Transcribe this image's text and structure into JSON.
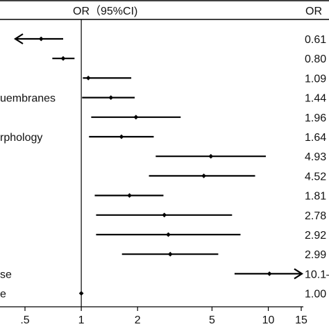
{
  "chart_data": {
    "type": "forest",
    "header": {
      "center": "OR（95%CI)",
      "right": "OR"
    },
    "x_scale": "log",
    "xlim": [
      0.4,
      15
    ],
    "x_ticks": [
      {
        "value": 0.5,
        "label": ".5"
      },
      {
        "value": 1,
        "label": "1"
      },
      {
        "value": 2,
        "label": "2"
      },
      {
        "value": 5,
        "label": "5"
      },
      {
        "value": 10,
        "label": "10"
      },
      {
        "value": 15,
        "label": "15"
      }
    ],
    "reference_line": 1,
    "rows": [
      {
        "label": "",
        "or": 0.61,
        "lower": 0.4,
        "upper": 0.8,
        "arrow_left": true,
        "arrow_right": false,
        "or_text": "0.61"
      },
      {
        "label": "",
        "or": 0.8,
        "lower": 0.7,
        "upper": 0.92,
        "arrow_left": false,
        "arrow_right": false,
        "or_text": "0.80"
      },
      {
        "label": "",
        "or": 1.09,
        "lower": 1.02,
        "upper": 1.85,
        "arrow_left": false,
        "arrow_right": false,
        "or_text": "1.09"
      },
      {
        "label": "uembranes",
        "or": 1.44,
        "lower": 1.01,
        "upper": 1.93,
        "arrow_left": false,
        "arrow_right": false,
        "or_text": "1.44"
      },
      {
        "label": "",
        "or": 1.96,
        "lower": 1.13,
        "upper": 3.4,
        "arrow_left": false,
        "arrow_right": false,
        "or_text": "1.96"
      },
      {
        "label": "rphology",
        "or": 1.64,
        "lower": 1.1,
        "upper": 2.44,
        "arrow_left": false,
        "arrow_right": false,
        "or_text": "1.64"
      },
      {
        "label": "",
        "or": 4.93,
        "lower": 2.5,
        "upper": 9.7,
        "arrow_left": false,
        "arrow_right": false,
        "or_text": "4.93"
      },
      {
        "label": "",
        "or": 4.52,
        "lower": 2.3,
        "upper": 8.5,
        "arrow_left": false,
        "arrow_right": false,
        "or_text": "4.52"
      },
      {
        "label": "",
        "or": 1.81,
        "lower": 1.18,
        "upper": 2.75,
        "arrow_left": false,
        "arrow_right": false,
        "or_text": "1.81"
      },
      {
        "label": "",
        "or": 2.78,
        "lower": 1.2,
        "upper": 6.4,
        "arrow_left": false,
        "arrow_right": false,
        "or_text": "2.78"
      },
      {
        "label": "",
        "or": 2.92,
        "lower": 1.2,
        "upper": 7.1,
        "arrow_left": false,
        "arrow_right": false,
        "or_text": "2.92"
      },
      {
        "label": "",
        "or": 2.99,
        "lower": 1.65,
        "upper": 5.4,
        "arrow_left": false,
        "arrow_right": false,
        "or_text": "2.99"
      },
      {
        "label": "se",
        "or": 10.14,
        "lower": 6.6,
        "upper": 15,
        "arrow_left": false,
        "arrow_right": true,
        "or_text": "10.1–"
      },
      {
        "label": "e",
        "or": 1.0,
        "lower": 1.0,
        "upper": 1.0,
        "arrow_left": false,
        "arrow_right": false,
        "or_text": "1.00"
      }
    ]
  }
}
